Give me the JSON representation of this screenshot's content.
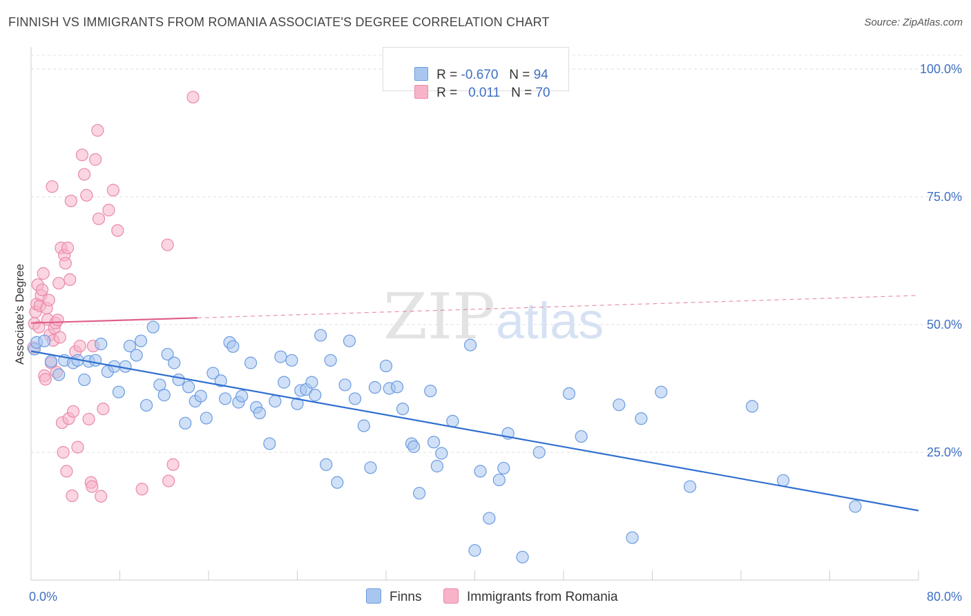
{
  "title": "FINNISH VS IMMIGRANTS FROM ROMANIA ASSOCIATE'S DEGREE CORRELATION CHART",
  "source": "Source: ZipAtlas.com",
  "watermark": {
    "zip": "ZIP",
    "atlas": "atlas"
  },
  "legend": {
    "r_label": "R =",
    "n_label": "N =",
    "rows": [
      {
        "r": "-0.670",
        "n": "94"
      },
      {
        "r": "0.011",
        "n": "70"
      }
    ]
  },
  "colors": {
    "finns_fill": "#a9c6f0",
    "finns_stroke": "#6a9be0",
    "finns_line": "#2f6fd0",
    "romania_fill": "#f7b3c8",
    "romania_stroke": "#e889a8",
    "romania_line": "#e0608a"
  },
  "chart_data": {
    "type": "scatter",
    "title": "FINNISH VS IMMIGRANTS FROM ROMANIA ASSOCIATE'S DEGREE CORRELATION CHART",
    "xlabel": "",
    "ylabel": "Associate's Degree",
    "xlim": [
      0,
      80
    ],
    "ylim": [
      0,
      100
    ],
    "x_tick_labels": [
      "0.0%",
      "80.0%"
    ],
    "y_ticks": [
      25,
      50,
      75,
      100
    ],
    "y_tick_labels": [
      "25.0%",
      "50.0%",
      "75.0%",
      "100.0%"
    ],
    "grid": true,
    "series": [
      {
        "name": "Finns",
        "r": -0.67,
        "n": 94,
        "trend": {
          "x": [
            0,
            80
          ],
          "y": [
            44.8,
            13.6
          ]
        },
        "points": [
          [
            0.3,
            45.2
          ],
          [
            0.5,
            46.5
          ],
          [
            1.2,
            46.8
          ],
          [
            1.8,
            42.8
          ],
          [
            2.5,
            40.2
          ],
          [
            3.0,
            43.0
          ],
          [
            3.8,
            42.5
          ],
          [
            4.2,
            43.0
          ],
          [
            4.8,
            39.2
          ],
          [
            5.2,
            42.8
          ],
          [
            5.8,
            43.0
          ],
          [
            6.3,
            46.2
          ],
          [
            6.9,
            40.8
          ],
          [
            7.5,
            41.8
          ],
          [
            7.9,
            36.8
          ],
          [
            8.5,
            41.8
          ],
          [
            8.9,
            45.8
          ],
          [
            9.5,
            44.0
          ],
          [
            9.9,
            46.8
          ],
          [
            10.4,
            34.2
          ],
          [
            11.0,
            49.5
          ],
          [
            11.6,
            38.2
          ],
          [
            12.0,
            36.2
          ],
          [
            12.3,
            44.2
          ],
          [
            12.9,
            42.5
          ],
          [
            13.3,
            39.2
          ],
          [
            13.9,
            30.7
          ],
          [
            14.2,
            37.8
          ],
          [
            14.8,
            35.0
          ],
          [
            15.3,
            36.0
          ],
          [
            15.8,
            31.7
          ],
          [
            16.4,
            40.5
          ],
          [
            17.1,
            39.0
          ],
          [
            17.5,
            35.5
          ],
          [
            17.9,
            46.5
          ],
          [
            18.2,
            45.7
          ],
          [
            18.7,
            34.8
          ],
          [
            19.0,
            36.0
          ],
          [
            19.8,
            42.5
          ],
          [
            20.3,
            33.8
          ],
          [
            20.6,
            32.7
          ],
          [
            21.5,
            26.7
          ],
          [
            22.0,
            35.0
          ],
          [
            22.5,
            43.7
          ],
          [
            22.8,
            38.7
          ],
          [
            23.5,
            43.0
          ],
          [
            24.0,
            34.5
          ],
          [
            24.3,
            37.1
          ],
          [
            24.8,
            37.3
          ],
          [
            25.3,
            38.7
          ],
          [
            25.6,
            36.2
          ],
          [
            26.1,
            47.9
          ],
          [
            26.6,
            22.6
          ],
          [
            27.0,
            43.0
          ],
          [
            27.6,
            19.1
          ],
          [
            28.3,
            38.2
          ],
          [
            28.7,
            46.8
          ],
          [
            29.2,
            35.5
          ],
          [
            30.0,
            30.2
          ],
          [
            30.6,
            22.0
          ],
          [
            31.0,
            37.7
          ],
          [
            32.0,
            41.9
          ],
          [
            32.3,
            37.5
          ],
          [
            33.0,
            37.8
          ],
          [
            33.5,
            33.5
          ],
          [
            34.3,
            26.7
          ],
          [
            34.5,
            26.1
          ],
          [
            35.0,
            17.0
          ],
          [
            36.0,
            37.0
          ],
          [
            36.3,
            27.0
          ],
          [
            36.6,
            22.3
          ],
          [
            37.0,
            24.8
          ],
          [
            38.0,
            31.1
          ],
          [
            39.6,
            46.0
          ],
          [
            40.0,
            5.8
          ],
          [
            40.5,
            21.3
          ],
          [
            41.3,
            12.1
          ],
          [
            42.2,
            19.6
          ],
          [
            42.6,
            21.9
          ],
          [
            43.0,
            28.7
          ],
          [
            44.3,
            4.5
          ],
          [
            45.8,
            25.0
          ],
          [
            48.5,
            36.5
          ],
          [
            49.6,
            28.1
          ],
          [
            53.0,
            34.3
          ],
          [
            54.2,
            8.3
          ],
          [
            55.0,
            31.6
          ],
          [
            56.8,
            36.8
          ],
          [
            59.4,
            18.3
          ],
          [
            65.0,
            34.0
          ],
          [
            67.8,
            19.5
          ],
          [
            74.3,
            14.4
          ]
        ]
      },
      {
        "name": "Immigrants from Romania",
        "r": 0.011,
        "n": 70,
        "trend": {
          "solid_x": [
            0,
            15.0
          ],
          "x": [
            0,
            80
          ],
          "y": [
            50.3,
            55.7
          ]
        },
        "points": [
          [
            0.2,
            45.5
          ],
          [
            0.3,
            50.2
          ],
          [
            0.4,
            52.5
          ],
          [
            0.5,
            54.0
          ],
          [
            0.6,
            57.8
          ],
          [
            0.7,
            49.5
          ],
          [
            0.8,
            53.7
          ],
          [
            0.9,
            55.7
          ],
          [
            1.0,
            56.8
          ],
          [
            1.1,
            60.0
          ],
          [
            1.2,
            40.0
          ],
          [
            1.3,
            39.3
          ],
          [
            1.4,
            53.2
          ],
          [
            1.5,
            51.0
          ],
          [
            1.6,
            54.8
          ],
          [
            1.7,
            48.0
          ],
          [
            1.8,
            42.5
          ],
          [
            1.9,
            77.0
          ],
          [
            2.0,
            46.9
          ],
          [
            2.1,
            49.3
          ],
          [
            2.2,
            50.3
          ],
          [
            2.3,
            40.7
          ],
          [
            2.4,
            50.9
          ],
          [
            2.5,
            58.1
          ],
          [
            2.6,
            47.5
          ],
          [
            2.7,
            65.0
          ],
          [
            2.8,
            30.8
          ],
          [
            2.9,
            25.0
          ],
          [
            3.0,
            63.6
          ],
          [
            3.1,
            62.0
          ],
          [
            3.2,
            21.3
          ],
          [
            3.3,
            65.0
          ],
          [
            3.4,
            31.6
          ],
          [
            3.5,
            58.8
          ],
          [
            3.6,
            74.2
          ],
          [
            3.7,
            16.5
          ],
          [
            3.8,
            33.0
          ],
          [
            4.0,
            44.7
          ],
          [
            4.2,
            26.0
          ],
          [
            4.4,
            45.8
          ],
          [
            4.6,
            83.2
          ],
          [
            4.8,
            79.4
          ],
          [
            5.0,
            75.3
          ],
          [
            5.2,
            31.5
          ],
          [
            5.4,
            19.1
          ],
          [
            5.5,
            18.3
          ],
          [
            5.6,
            45.8
          ],
          [
            5.8,
            82.3
          ],
          [
            6.0,
            88.0
          ],
          [
            6.1,
            70.7
          ],
          [
            6.3,
            16.4
          ],
          [
            6.5,
            33.5
          ],
          [
            7.0,
            72.4
          ],
          [
            7.4,
            76.3
          ],
          [
            7.8,
            68.4
          ],
          [
            10.0,
            17.8
          ],
          [
            12.3,
            65.6
          ],
          [
            12.4,
            19.4
          ],
          [
            12.8,
            22.6
          ],
          [
            14.6,
            94.5
          ]
        ]
      }
    ]
  },
  "bottom_legend": {
    "finns": "Finns",
    "romania": "Immigrants from Romania"
  }
}
